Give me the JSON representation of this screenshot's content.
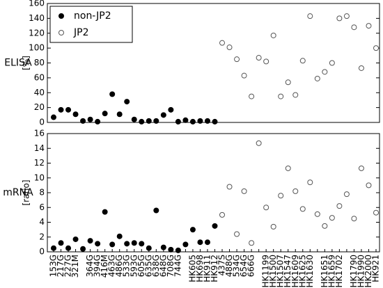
{
  "chart_data": [
    {
      "type": "scatter",
      "row_label": "ELISA",
      "ylabel": "[%]",
      "ylim": [
        0,
        160
      ],
      "yticks": [
        0,
        20,
        40,
        60,
        80,
        100,
        120,
        140,
        160
      ],
      "legend": "upper left",
      "series": [
        {
          "name": "non-JP2",
          "color": "#000000",
          "filled": true,
          "values": [
            7,
            17,
            17,
            11,
            2,
            4,
            1,
            12,
            38,
            11,
            28,
            4,
            1,
            2,
            2,
            10,
            17,
            1,
            3,
            1,
            2,
            2,
            1,
            null,
            null,
            null,
            null,
            null,
            null,
            null,
            null,
            null,
            null,
            null,
            null,
            null,
            null,
            null,
            null,
            null,
            null,
            null,
            null,
            null,
            null
          ]
        },
        {
          "name": "JP2",
          "color": "#555555",
          "filled": false,
          "values": [
            null,
            null,
            null,
            null,
            null,
            null,
            null,
            null,
            null,
            null,
            null,
            null,
            null,
            null,
            null,
            null,
            null,
            null,
            null,
            null,
            null,
            null,
            null,
            107,
            101,
            85,
            63,
            35,
            87,
            82,
            117,
            35,
            54,
            37,
            83,
            143,
            59,
            68,
            80,
            140,
            143,
            128,
            73,
            130,
            100
          ]
        }
      ]
    },
    {
      "type": "scatter",
      "row_label": "mRNA",
      "ylabel": "[ratio]",
      "ylim": [
        0,
        16
      ],
      "yticks": [
        0,
        2,
        4,
        6,
        8,
        10,
        12,
        14,
        16
      ],
      "categories": [
        "153G",
        "217G",
        "227G",
        "321M",
        null,
        "364G",
        "394G",
        "416M",
        "463G",
        "486G",
        "533G",
        "593G",
        "605G",
        "635G",
        "638G",
        "648G",
        "708G",
        "744G",
        null,
        "HK605",
        "HK698",
        "HK911",
        "HK912",
        "437S",
        "488G",
        "534G",
        "654G",
        "666G",
        null,
        "HK1199",
        "HK1500",
        "HK1507",
        "HK1547",
        "HK1609",
        "HK1625",
        "HK1630",
        null,
        "HK1651",
        "HK1659",
        "HK1702",
        null,
        "HK1790",
        "HK1990",
        "HK2000",
        "HK921"
      ],
      "series": [
        {
          "name": "non-JP2",
          "color": "#000000",
          "filled": true,
          "values": [
            0.5,
            1.2,
            0.5,
            1.7,
            0.4,
            1.5,
            1.1,
            5.4,
            1.0,
            2.1,
            1.1,
            1.2,
            1.1,
            0.5,
            5.6,
            0.6,
            0.3,
            0.2,
            1.0,
            3.0,
            1.3,
            1.3,
            3.5,
            null,
            null,
            null,
            null,
            null,
            null,
            null,
            null,
            null,
            null,
            null,
            null,
            null,
            null,
            null,
            null,
            null,
            null,
            null,
            null,
            null,
            null
          ]
        },
        {
          "name": "JP2",
          "color": "#555555",
          "filled": false,
          "values": [
            null,
            null,
            null,
            null,
            null,
            null,
            null,
            null,
            null,
            null,
            null,
            null,
            null,
            null,
            null,
            null,
            null,
            null,
            null,
            null,
            null,
            null,
            null,
            5.0,
            8.8,
            2.4,
            8.2,
            1.2,
            14.7,
            6.0,
            3.4,
            7.6,
            11.3,
            8.2,
            5.8,
            9.4,
            5.1,
            3.5,
            4.6,
            6.2,
            7.8,
            4.5,
            11.3,
            9.0,
            5.3
          ]
        }
      ]
    }
  ]
}
